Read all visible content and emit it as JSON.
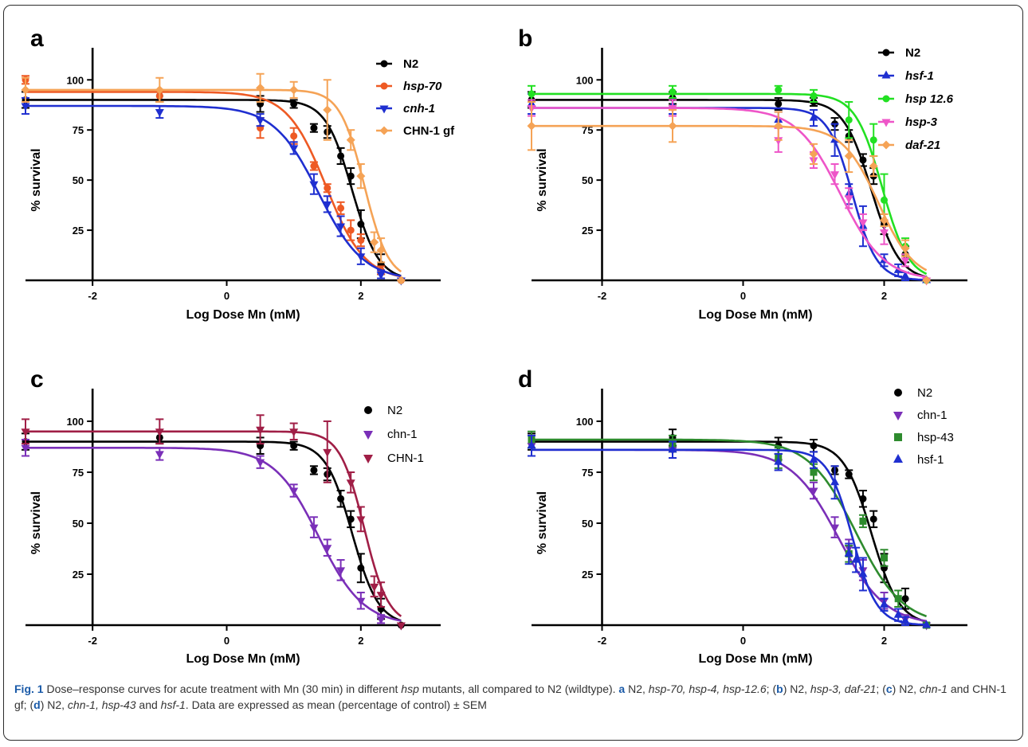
{
  "chart_data": [
    {
      "panel": "a",
      "type": "scatter",
      "xlabel": "Log Dose Mn (mM)",
      "ylabel": "% survival",
      "xticks": [
        "-2",
        "0",
        "2"
      ],
      "yticks": [
        "25",
        "50",
        "75",
        "100"
      ],
      "xlim": [
        -3,
        3
      ],
      "ylim": [
        0,
        120
      ],
      "legend": "top-right",
      "legend_style": "bold-italic",
      "series": [
        {
          "name": "N2",
          "color": "#000000",
          "marker": "circle",
          "top": 90,
          "bottom": 0,
          "logec50": 1.87,
          "hill": 2.2,
          "x": [
            -3,
            -1,
            0.5,
            1,
            1.3,
            1.5,
            1.7,
            1.85,
            2,
            2.3,
            2.6
          ],
          "y": [
            90,
            92,
            88,
            88,
            76,
            74,
            62,
            52,
            28,
            8,
            0
          ],
          "err": [
            4,
            3,
            4,
            2,
            2,
            3,
            4,
            4,
            7,
            5,
            0
          ]
        },
        {
          "name": "hsp-70",
          "italic": true,
          "color": "#ee5a24",
          "marker": "circle",
          "top": 94,
          "bottom": 0,
          "logec50": 1.48,
          "hill": 1.5,
          "x": [
            -3,
            -1,
            0.5,
            1,
            1.3,
            1.5,
            1.7,
            1.85,
            2,
            2.3,
            2.6
          ],
          "y": [
            100,
            92,
            76,
            72,
            57,
            46,
            36,
            25,
            20,
            5,
            0
          ],
          "err": [
            2,
            3,
            5,
            4,
            2,
            2,
            3,
            5,
            3,
            2,
            0
          ]
        },
        {
          "name": "cnh-1",
          "italic": true,
          "color": "#1f2fd0",
          "marker": "triangle-down",
          "top": 87,
          "bottom": 0,
          "logec50": 1.37,
          "hill": 1.3,
          "x": [
            -3,
            -1,
            0.5,
            1,
            1.3,
            1.5,
            1.7,
            2,
            2.3,
            2.6
          ],
          "y": [
            87,
            84,
            80,
            66,
            48,
            38,
            27,
            12,
            3,
            0
          ],
          "err": [
            4,
            3,
            3,
            3,
            5,
            4,
            5,
            4,
            2,
            0
          ]
        },
        {
          "name": "CHN-1 gf",
          "color": "#f5a356",
          "marker": "diamond",
          "top": 95,
          "bottom": 0,
          "logec50": 2.05,
          "hill": 2.4,
          "x": [
            -3,
            -1,
            0.5,
            1,
            1.5,
            1.85,
            2,
            2.2,
            2.3,
            2.6
          ],
          "y": [
            95,
            95,
            96,
            95,
            85,
            70,
            52,
            19,
            15,
            0
          ],
          "err": [
            6,
            6,
            7,
            4,
            15,
            5,
            6,
            5,
            6,
            0
          ]
        }
      ]
    },
    {
      "panel": "b",
      "type": "scatter",
      "xlabel": "Log Dose Mn (mM)",
      "ylabel": "% survival",
      "xticks": [
        "-2",
        "0",
        "2"
      ],
      "yticks": [
        "25",
        "50",
        "75",
        "100"
      ],
      "xlim": [
        -3,
        3
      ],
      "ylim": [
        0,
        120
      ],
      "legend": "top-right",
      "series": [
        {
          "name": "N2",
          "color": "#000000",
          "marker": "circle",
          "top": 90,
          "bottom": 0,
          "logec50": 1.82,
          "hill": 2.2,
          "x": [
            -3,
            -1,
            0.5,
            1,
            1.3,
            1.5,
            1.7,
            1.85,
            2,
            2.3,
            2.6
          ],
          "y": [
            90,
            91,
            88,
            89,
            78,
            72,
            60,
            52,
            28,
            13,
            0
          ],
          "err": [
            4,
            3,
            3,
            2,
            3,
            3,
            3,
            4,
            5,
            4,
            0
          ]
        },
        {
          "name": "hsf-1",
          "italic": true,
          "color": "#1f2fd0",
          "marker": "triangle",
          "top": 86,
          "bottom": 0,
          "logec50": 1.55,
          "hill": 2.5,
          "x": [
            -3,
            -1,
            0.5,
            1,
            1.3,
            1.5,
            1.7,
            2,
            2.2,
            2.3,
            2.6
          ],
          "y": [
            88,
            87,
            80,
            81,
            70,
            43,
            27,
            10,
            5,
            2,
            0
          ],
          "err": [
            5,
            4,
            4,
            4,
            8,
            5,
            10,
            3,
            3,
            2,
            0
          ]
        },
        {
          "name": "hsp 12.6",
          "italic": true,
          "color": "#22e022",
          "marker": "circle",
          "top": 93,
          "bottom": 0,
          "logec50": 1.97,
          "hill": 2.3,
          "x": [
            -3,
            -1,
            0.5,
            1,
            1.5,
            1.85,
            2,
            2.3,
            2.6
          ],
          "y": [
            93,
            94,
            95,
            92,
            80,
            70,
            40,
            17,
            0
          ],
          "err": [
            4,
            3,
            2,
            3,
            9,
            8,
            13,
            4,
            0
          ]
        },
        {
          "name": "hsp-3",
          "italic": true,
          "color": "#ee55c8",
          "marker": "triangle-down",
          "top": 86,
          "bottom": 0,
          "logec50": 1.38,
          "hill": 1.4,
          "x": [
            -3,
            -1,
            0.5,
            1,
            1.3,
            1.5,
            1.7,
            2,
            2.3,
            2.6
          ],
          "y": [
            86,
            86,
            70,
            60,
            53,
            41,
            29,
            24,
            10,
            0
          ],
          "err": [
            4,
            4,
            6,
            4,
            5,
            5,
            4,
            6,
            3,
            0
          ]
        },
        {
          "name": "daf-21",
          "italic": true,
          "color": "#f5a356",
          "marker": "diamond",
          "top": 77,
          "bottom": 0,
          "logec50": 1.92,
          "hill": 1.7,
          "x": [
            -3,
            -1,
            0.5,
            1,
            1.5,
            1.85,
            2,
            2.3,
            2.6
          ],
          "y": [
            77,
            77,
            77,
            63,
            62,
            57,
            30,
            16,
            0
          ],
          "err": [
            12,
            8,
            7,
            5,
            8,
            5,
            3,
            4,
            0
          ]
        }
      ]
    },
    {
      "panel": "c",
      "type": "scatter",
      "xlabel": "Log Dose Mn (mM)",
      "ylabel": "% survival",
      "xticks": [
        "-2",
        "0",
        "2"
      ],
      "yticks": [
        "25",
        "50",
        "75",
        "100"
      ],
      "xlim": [
        -3,
        3
      ],
      "ylim": [
        0,
        120
      ],
      "legend": "top-right",
      "series": [
        {
          "name": "N2",
          "color": "#000000",
          "marker": "circle",
          "top": 90,
          "bottom": 0,
          "logec50": 1.87,
          "hill": 2.2,
          "x": [
            -3,
            -1,
            0.5,
            1,
            1.3,
            1.5,
            1.7,
            1.85,
            2,
            2.3,
            2.6
          ],
          "y": [
            90,
            92,
            88,
            88,
            76,
            74,
            62,
            52,
            28,
            8,
            0
          ],
          "err": [
            4,
            3,
            4,
            2,
            2,
            3,
            4,
            4,
            7,
            5,
            0
          ]
        },
        {
          "name": "chn-1",
          "color": "#7a2fb8",
          "marker": "triangle-down",
          "top": 87,
          "bottom": 0,
          "logec50": 1.37,
          "hill": 1.3,
          "x": [
            -3,
            -1,
            0.5,
            1,
            1.3,
            1.5,
            1.7,
            2,
            2.3,
            2.6
          ],
          "y": [
            87,
            84,
            80,
            66,
            48,
            38,
            27,
            12,
            3,
            0
          ],
          "err": [
            4,
            3,
            3,
            3,
            5,
            4,
            5,
            4,
            2,
            0
          ]
        },
        {
          "name": "CHN-1",
          "color": "#a01e46",
          "marker": "triangle-down",
          "top": 95,
          "bottom": 0,
          "logec50": 2.05,
          "hill": 2.4,
          "x": [
            -3,
            -1,
            0.5,
            1,
            1.5,
            1.85,
            2,
            2.2,
            2.3,
            2.6
          ],
          "y": [
            95,
            95,
            96,
            95,
            85,
            70,
            52,
            19,
            15,
            0
          ],
          "err": [
            6,
            6,
            7,
            4,
            15,
            5,
            6,
            5,
            6,
            0
          ]
        }
      ]
    },
    {
      "panel": "d",
      "type": "scatter",
      "xlabel": "Log Dose Mn (mM)",
      "ylabel": "% survival",
      "xticks": [
        "-2",
        "0",
        "2"
      ],
      "yticks": [
        "25",
        "50",
        "75",
        "100"
      ],
      "xlim": [
        -3,
        3
      ],
      "ylim": [
        0,
        120
      ],
      "legend": "top-right",
      "series": [
        {
          "name": "N2",
          "color": "#000000",
          "marker": "circle",
          "top": 90,
          "bottom": 0,
          "logec50": 1.82,
          "hill": 2.2,
          "x": [
            -3,
            -1,
            0.5,
            1,
            1.3,
            1.5,
            1.7,
            1.85,
            2,
            2.3,
            2.6
          ],
          "y": [
            90,
            92,
            88,
            88,
            76,
            74,
            62,
            52,
            28,
            13,
            0
          ],
          "err": [
            4,
            4,
            4,
            3,
            2,
            2,
            4,
            4,
            7,
            5,
            0
          ]
        },
        {
          "name": "chn-1",
          "color": "#7a2fb8",
          "marker": "triangle-down",
          "top": 86,
          "bottom": 0,
          "logec50": 1.35,
          "hill": 1.3,
          "x": [
            -3,
            -1,
            0.5,
            1,
            1.3,
            1.5,
            1.7,
            2,
            2.3,
            2.6
          ],
          "y": [
            88,
            86,
            80,
            66,
            48,
            38,
            27,
            12,
            3,
            0
          ],
          "err": [
            5,
            4,
            4,
            4,
            5,
            4,
            5,
            4,
            2,
            0
          ]
        },
        {
          "name": "hsp-43",
          "color": "#2e8b2e",
          "marker": "square",
          "top": 91,
          "bottom": 0,
          "logec50": 1.6,
          "hill": 1.3,
          "x": [
            -3,
            -1,
            0.5,
            1,
            1.5,
            1.7,
            2,
            2.2,
            2.6
          ],
          "y": [
            91,
            89,
            82,
            75,
            35,
            51,
            33,
            13,
            0
          ],
          "err": [
            4,
            4,
            5,
            4,
            4,
            3,
            4,
            4,
            0
          ]
        },
        {
          "name": "hsf-1",
          "color": "#1f2fd0",
          "marker": "triangle",
          "top": 86,
          "bottom": 0,
          "logec50": 1.55,
          "hill": 2.5,
          "x": [
            -3,
            -1,
            0.5,
            1,
            1.3,
            1.5,
            1.6,
            1.7,
            2,
            2.2,
            2.3,
            2.6
          ],
          "y": [
            88,
            86,
            80,
            81,
            70,
            35,
            32,
            25,
            10,
            5,
            2,
            0
          ],
          "err": [
            5,
            4,
            4,
            4,
            8,
            5,
            6,
            8,
            3,
            3,
            2,
            0
          ]
        }
      ]
    }
  ],
  "caption": {
    "fig_label": "Fig. 1",
    "text_1": " Dose–response curves for acute treatment with Mn (30 min) in different ",
    "hsp": "hsp",
    "text_2": " mutants, all compared to N2 (wildtype). ",
    "a": "a",
    "text_3": " N2, ",
    "a_list": "hsp-70, hsp-4, hsp-12.6",
    "text_4": "; (",
    "b": "b",
    "text_5": ") N2, ",
    "b_list": "hsp-3, daf-21",
    "text_6": "; (",
    "c": "c",
    "text_7": ") N2, ",
    "c_list": "chn-1",
    "text_8": " and CHN-1 gf; (",
    "d": "d",
    "text_9": ") N2, ",
    "d_list": "chn-1, hsp-43",
    "text_10": " and ",
    "d_last": "hsf-1",
    "text_11": ". Data are expressed as mean (percentage of control) ± SEM"
  }
}
